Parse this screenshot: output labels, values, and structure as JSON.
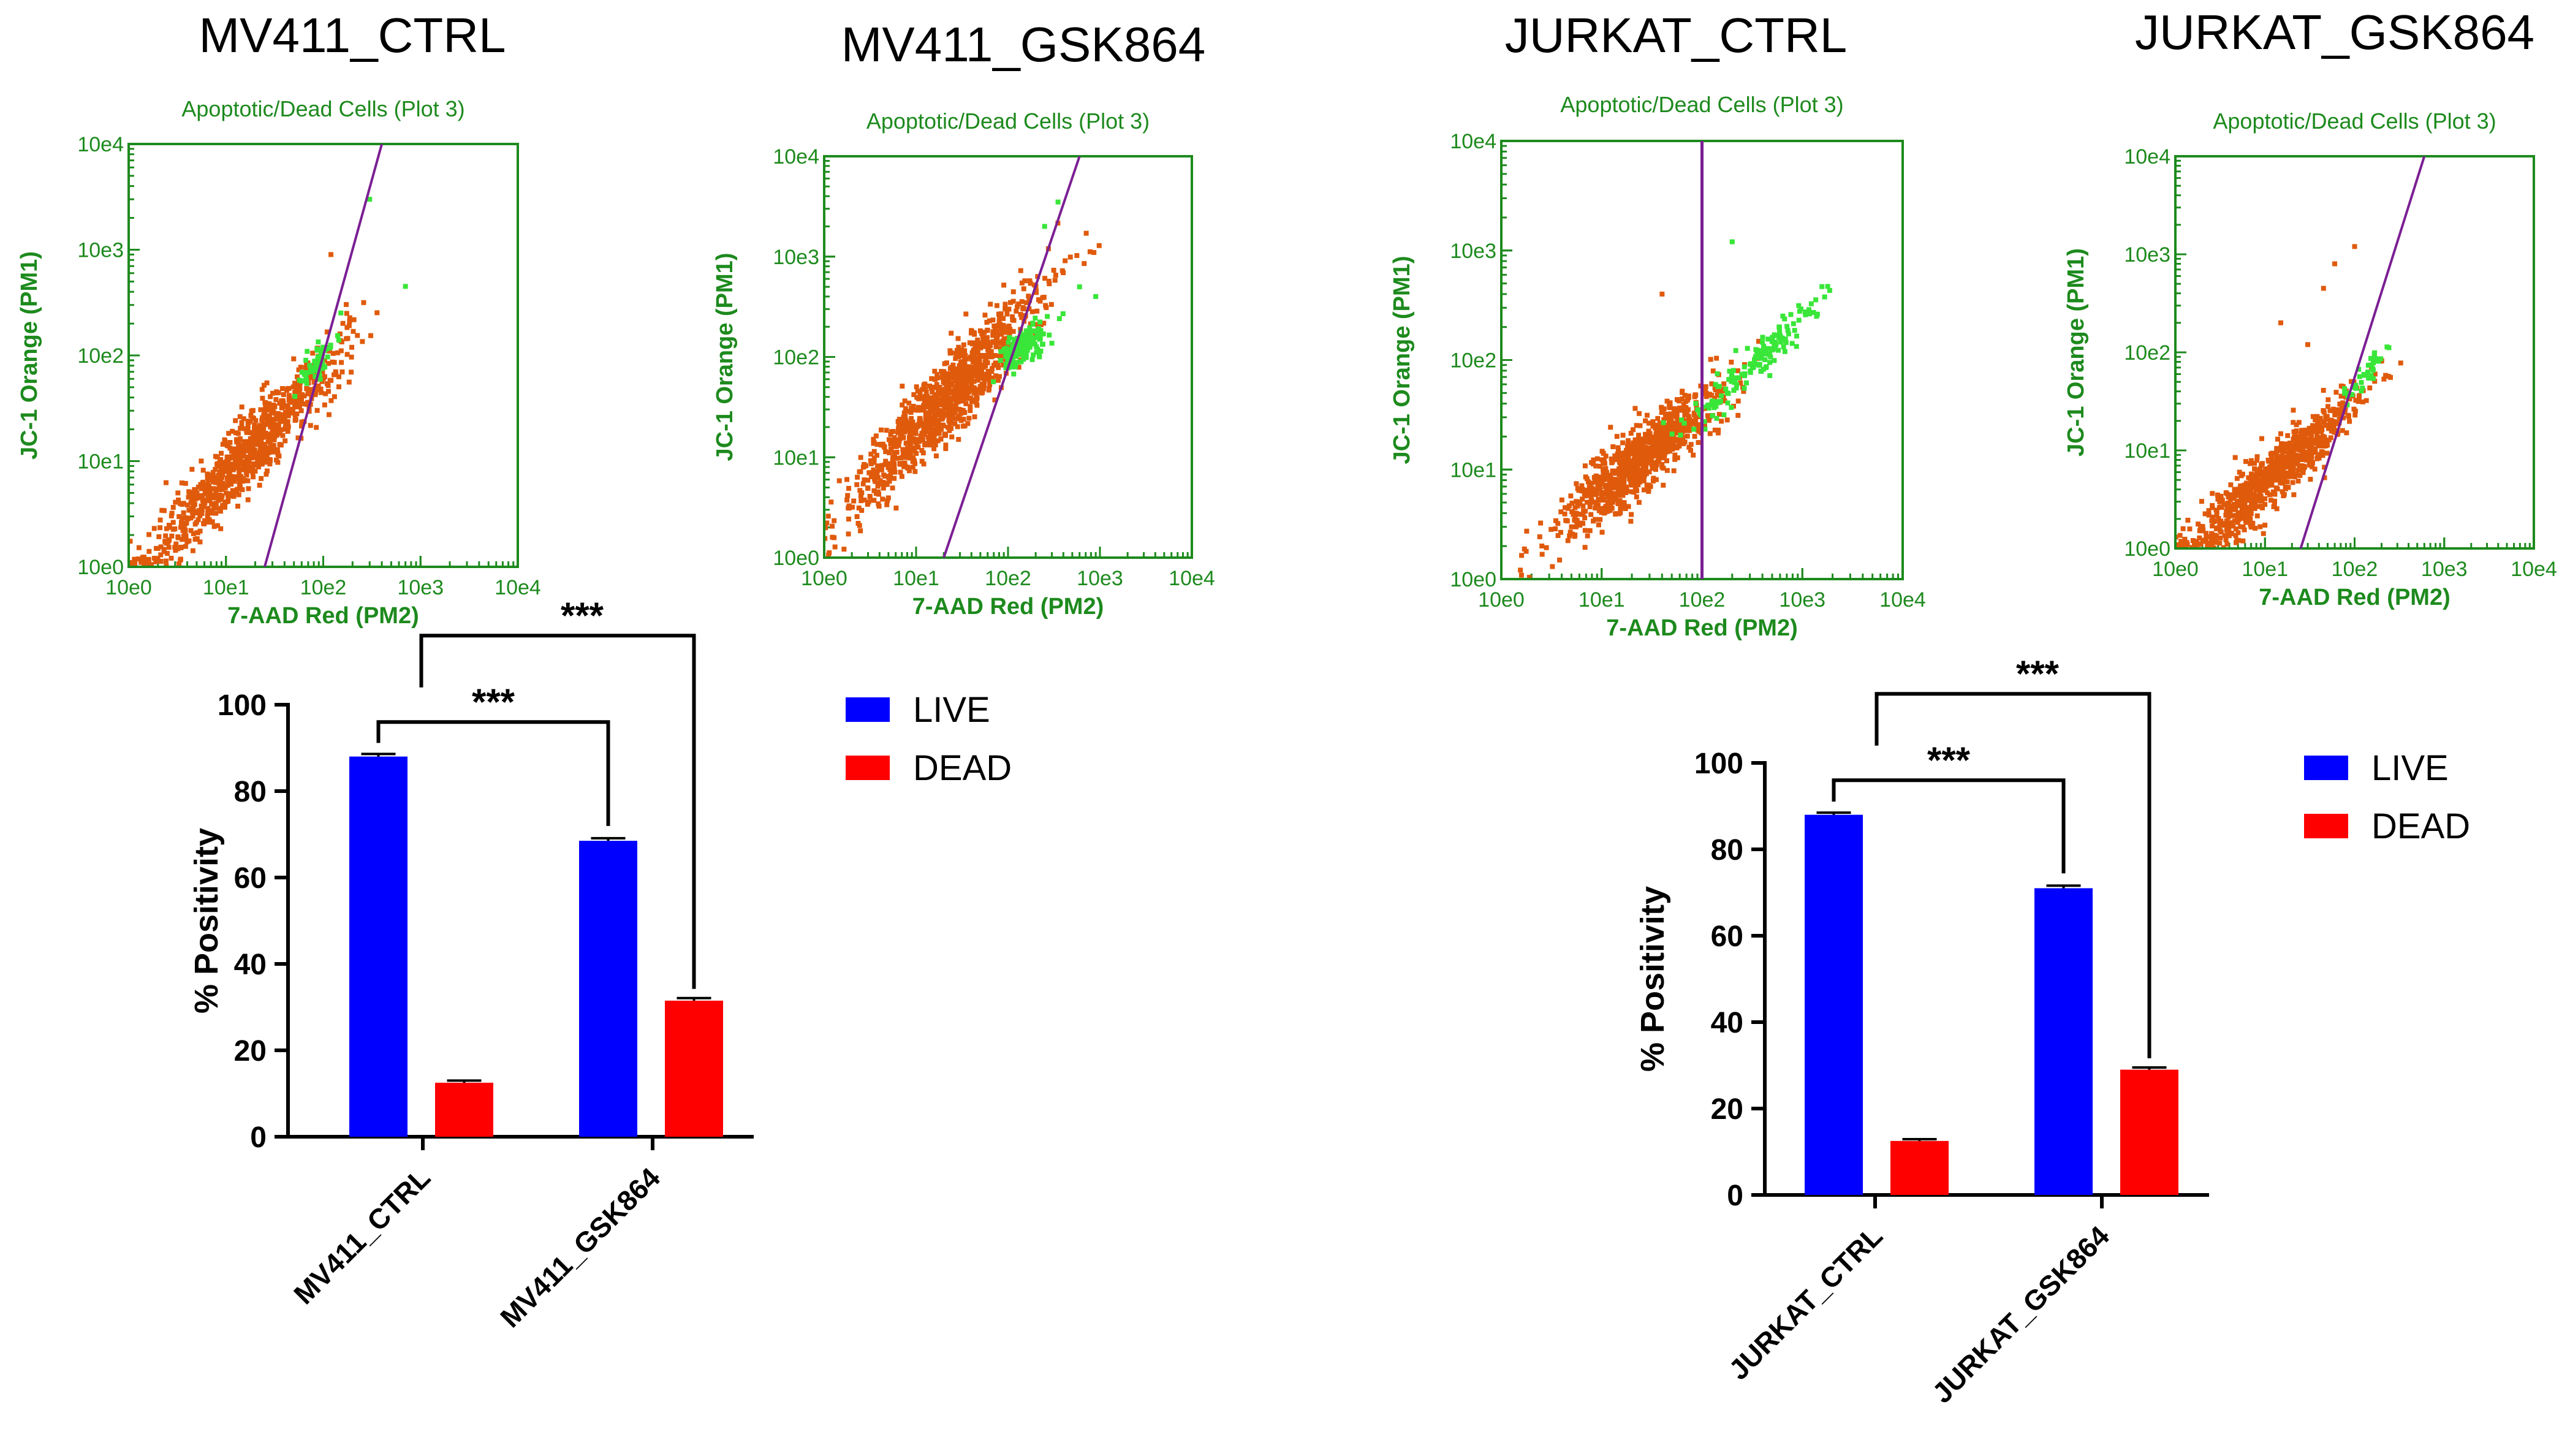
{
  "colors": {
    "flow_frame": "#1d8a1d",
    "gate_line": "#7b1f93",
    "orange_dots": "#e05a0c",
    "green_dots": "#39e639",
    "live_bar": "#0000ff",
    "dead_bar": "#ff0000",
    "axis": "#000000"
  },
  "chart_data": [
    {
      "type": "scatter",
      "sample_title": "MV411_CTRL",
      "title": "Apoptotic/Dead Cells (Plot 3)",
      "xlabel": "7-AAD Red (PM2)",
      "ylabel": "JC-1 Orange (PM1)",
      "x_scale": "log",
      "y_scale": "log",
      "xlim": [
        1,
        10000
      ],
      "ylim": [
        1,
        10000
      ],
      "tick_labels": [
        "10e0",
        "10e1",
        "10e2",
        "10e3",
        "10e4"
      ],
      "gate": {
        "type": "diagonal",
        "points": [
          [
            25,
            1
          ],
          [
            400,
            10000
          ]
        ]
      },
      "populations": [
        {
          "name": "orange",
          "center_log": [
            1.2,
            1.05
          ],
          "spread_log": [
            0.5,
            0.38
          ],
          "slope": 1.0,
          "count": 900
        },
        {
          "name": "green",
          "center_log": [
            1.95,
            1.95
          ],
          "spread_log": [
            0.12,
            0.18
          ],
          "slope": 1.0,
          "count": 60
        }
      ],
      "sparse_points": [
        [
          300,
          3000
        ],
        [
          700,
          450
        ],
        [
          120,
          900
        ]
      ]
    },
    {
      "type": "scatter",
      "sample_title": "MV411_GSK864",
      "title": "Apoptotic/Dead Cells (Plot 3)",
      "xlabel": "7-AAD Red (PM2)",
      "ylabel": "JC-1 Orange (PM1)",
      "x_scale": "log",
      "y_scale": "log",
      "xlim": [
        1,
        10000
      ],
      "ylim": [
        1,
        10000
      ],
      "tick_labels": [
        "10e0",
        "10e1",
        "10e2",
        "10e3",
        "10e4"
      ],
      "gate": {
        "type": "diagonal",
        "points": [
          [
            20,
            1
          ],
          [
            600,
            10000
          ]
        ]
      },
      "populations": [
        {
          "name": "orange",
          "center_log": [
            1.35,
            1.6
          ],
          "spread_log": [
            0.5,
            0.45
          ],
          "slope": 1.0,
          "count": 1100
        },
        {
          "name": "green",
          "center_log": [
            2.15,
            2.1
          ],
          "spread_log": [
            0.15,
            0.2
          ],
          "slope": 0.6,
          "count": 150
        }
      ],
      "sparse_points": [
        [
          350,
          3500
        ],
        [
          600,
          500
        ],
        [
          900,
          400
        ],
        [
          250,
          2000
        ]
      ]
    },
    {
      "type": "scatter",
      "sample_title": "JURKAT_CTRL",
      "title": "Apoptotic/Dead Cells (Plot 3)",
      "xlabel": "7-AAD Red (PM2)",
      "ylabel": "JC-1 Orange (PM1)",
      "x_scale": "log",
      "y_scale": "log",
      "xlim": [
        1,
        10000
      ],
      "ylim": [
        1,
        10000
      ],
      "tick_labels": [
        "10e0",
        "10e1",
        "10e2",
        "10e3",
        "10e4"
      ],
      "gate": {
        "type": "vertical",
        "x": 100
      },
      "populations": [
        {
          "name": "orange",
          "center_log": [
            1.4,
            1.1
          ],
          "spread_log": [
            0.42,
            0.35
          ],
          "slope": 0.75,
          "count": 900
        },
        {
          "name": "green",
          "center_log": [
            2.55,
            2.0
          ],
          "spread_log": [
            0.35,
            0.2
          ],
          "slope": 0.85,
          "count": 160
        }
      ],
      "sparse_points": [
        [
          200,
          1200
        ],
        [
          40,
          400
        ],
        [
          5,
          3
        ]
      ]
    },
    {
      "type": "scatter",
      "sample_title": "JURKAT_GSK864",
      "title": "Apoptotic/Dead Cells (Plot 3)",
      "xlabel": "7-AAD Red (PM2)",
      "ylabel": "JC-1 Orange (PM1)",
      "x_scale": "log",
      "y_scale": "log",
      "xlim": [
        1,
        10000
      ],
      "ylim": [
        1,
        10000
      ],
      "tick_labels": [
        "10e0",
        "10e1",
        "10e2",
        "10e3",
        "10e4"
      ],
      "gate": {
        "type": "diagonal",
        "points": [
          [
            25,
            1
          ],
          [
            600,
            10000
          ]
        ]
      },
      "populations": [
        {
          "name": "orange",
          "center_log": [
            1.1,
            0.75
          ],
          "spread_log": [
            0.48,
            0.35
          ],
          "slope": 0.8,
          "count": 800
        },
        {
          "name": "green",
          "center_log": [
            2.1,
            1.75
          ],
          "spread_log": [
            0.12,
            0.12
          ],
          "slope": 0.9,
          "count": 40
        }
      ],
      "sparse_points": [
        [
          60,
          800
        ],
        [
          30,
          120
        ],
        [
          15,
          200
        ],
        [
          100,
          1200
        ],
        [
          45,
          450
        ]
      ]
    },
    {
      "type": "bar",
      "categories": [
        "MV411_CTRL",
        "MV411_GSK864"
      ],
      "series": [
        {
          "name": "LIVE",
          "values": [
            88,
            68.5
          ],
          "errors": [
            0.6,
            0.6
          ]
        },
        {
          "name": "DEAD",
          "values": [
            12.5,
            31.5
          ],
          "errors": [
            0.5,
            0.6
          ]
        }
      ],
      "ylabel": "% Positivity",
      "ylim": [
        0,
        100
      ],
      "yticks": [
        0,
        20,
        40,
        60,
        80,
        100
      ],
      "significance": [
        {
          "label": "***",
          "from": [
            "MV411_CTRL",
            "LIVE"
          ],
          "to": [
            "MV411_GSK864",
            "LIVE"
          ]
        },
        {
          "label": "***",
          "from": [
            "MV411_CTRL",
            "gap"
          ],
          "to": [
            "MV411_GSK864",
            "DEAD"
          ]
        }
      ],
      "legend": [
        "LIVE",
        "DEAD"
      ]
    },
    {
      "type": "bar",
      "categories": [
        "JURKAT_CTRL",
        "JURKAT_GSK864"
      ],
      "series": [
        {
          "name": "LIVE",
          "values": [
            88,
            71
          ],
          "errors": [
            0.5,
            0.6
          ]
        },
        {
          "name": "DEAD",
          "values": [
            12.5,
            29
          ],
          "errors": [
            0.4,
            0.5
          ]
        }
      ],
      "ylabel": "% Positivity",
      "ylim": [
        0,
        100
      ],
      "yticks": [
        0,
        20,
        40,
        60,
        80,
        100
      ],
      "significance": [
        {
          "label": "***",
          "from": [
            "JURKAT_CTRL",
            "LIVE"
          ],
          "to": [
            "JURKAT_GSK864",
            "LIVE"
          ]
        },
        {
          "label": "***",
          "from": [
            "JURKAT_CTRL",
            "gap"
          ],
          "to": [
            "JURKAT_GSK864",
            "DEAD"
          ]
        }
      ],
      "legend": [
        "LIVE",
        "DEAD"
      ]
    }
  ]
}
